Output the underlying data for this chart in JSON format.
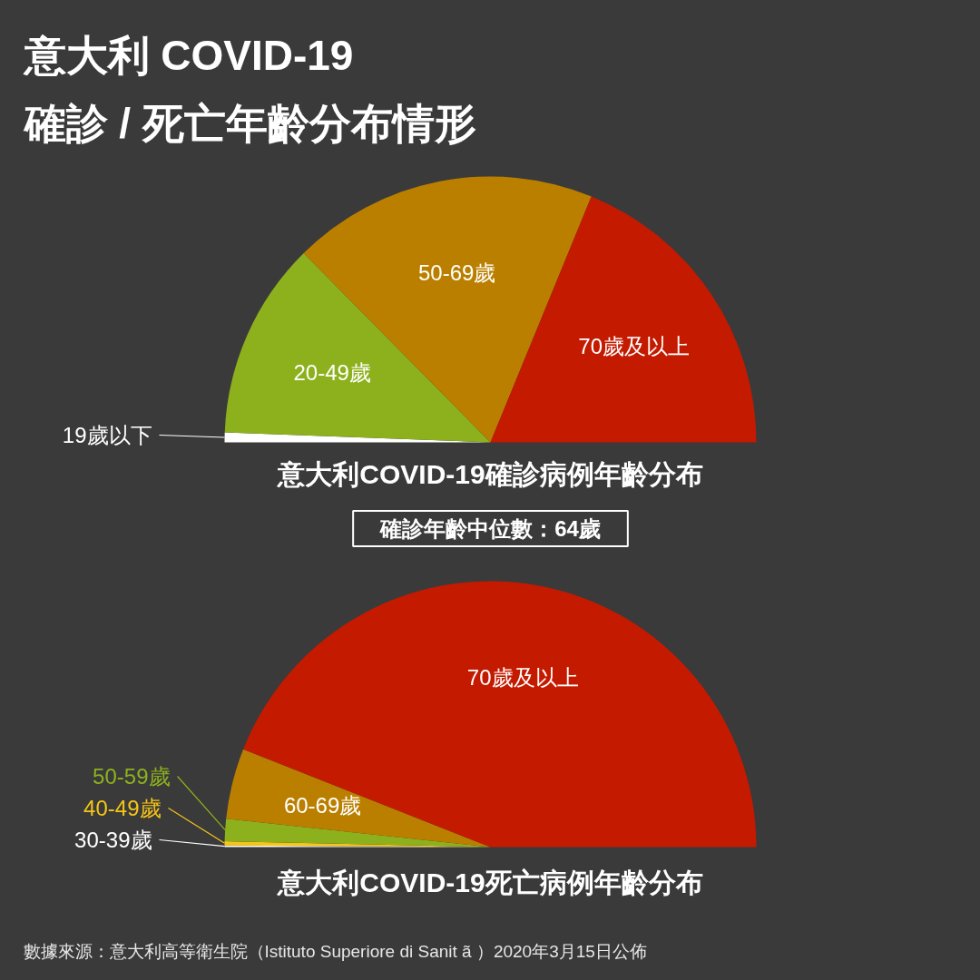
{
  "chart_data": [
    {
      "type": "pie",
      "title": "意大利 COVID-19\n確診 / 死亡年齡分布情形",
      "xlabel": "意大利COVID-19確診病例年齡分布",
      "categories": [
        "19歲以下",
        "20-49歲",
        "50-69歲",
        "70歲及以上"
      ],
      "values": [
        1.2,
        24.0,
        37.2,
        37.6
      ],
      "colors": [
        "#ffffff",
        "#8db11d",
        "#bb7f00",
        "#c41a00"
      ],
      "annotations": [
        "確診年齡中位數：64歲"
      ]
    },
    {
      "type": "pie",
      "xlabel": "意大利COVID-19死亡病例年齡分布",
      "categories": [
        "30-39歲",
        "40-49歲",
        "50-59歲",
        "60-69歲",
        "70歲及以上"
      ],
      "values": [
        0.2,
        0.5,
        2.7,
        8.6,
        88.0
      ],
      "colors": [
        "#ffffff",
        "#f5c518",
        "#8db11d",
        "#bb7f00",
        "#c41a00"
      ],
      "annotations": [
        "數據來源：意大利高等衛生院（Istituto Superiore di Sanit ã ）2020年3月15日公佈"
      ]
    }
  ]
}
